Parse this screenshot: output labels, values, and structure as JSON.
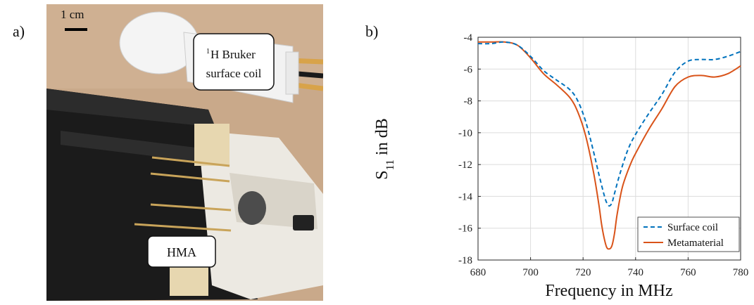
{
  "panel_a": {
    "label": "a)",
    "scale_bar": "1 cm",
    "coil_label_superscript": "1",
    "coil_label_line1": "H Bruker",
    "coil_label_line2": "surface coil",
    "hma_label": "HMA"
  },
  "panel_b": {
    "label": "b)"
  },
  "chart_data": {
    "type": "line",
    "xlabel": "Frequency in MHz",
    "ylabel_main": "S",
    "ylabel_sub": "11",
    "ylabel_suffix": " in dB",
    "xlim": [
      680,
      780
    ],
    "ylim": [
      -18,
      -4
    ],
    "xticks": [
      680,
      700,
      720,
      740,
      760,
      780
    ],
    "yticks": [
      -4,
      -6,
      -8,
      -10,
      -12,
      -14,
      -16,
      -18
    ],
    "grid": true,
    "legend_position": "bottom-right",
    "series": [
      {
        "name": "Surface coil",
        "color": "#0072BD",
        "style": "dashed",
        "x": [
          680,
          685,
          690,
          695,
          700,
          705,
          710,
          715,
          718,
          721,
          724,
          726,
          728,
          729,
          730,
          731,
          732,
          734,
          737,
          740,
          745,
          750,
          755,
          760,
          765,
          770,
          775,
          780
        ],
        "y": [
          -4.4,
          -4.4,
          -4.3,
          -4.5,
          -5.2,
          -6.1,
          -6.7,
          -7.3,
          -8.0,
          -9.3,
          -11.2,
          -12.6,
          -13.9,
          -14.4,
          -14.6,
          -14.4,
          -13.8,
          -12.6,
          -11.1,
          -10.1,
          -8.8,
          -7.6,
          -6.2,
          -5.5,
          -5.4,
          -5.4,
          -5.2,
          -4.9
        ]
      },
      {
        "name": "Metamaterial",
        "color": "#D95319",
        "style": "solid",
        "x": [
          680,
          685,
          690,
          695,
          700,
          705,
          710,
          715,
          718,
          721,
          724,
          726,
          727,
          728,
          729,
          730,
          731,
          732,
          733,
          735,
          738,
          740,
          745,
          750,
          755,
          760,
          765,
          770,
          775,
          780
        ],
        "y": [
          -4.3,
          -4.3,
          -4.3,
          -4.5,
          -5.3,
          -6.3,
          -7.0,
          -7.8,
          -8.7,
          -10.2,
          -12.5,
          -14.5,
          -15.7,
          -16.6,
          -17.2,
          -17.3,
          -17.1,
          -16.3,
          -15.1,
          -13.4,
          -12.0,
          -11.3,
          -9.8,
          -8.5,
          -7.1,
          -6.5,
          -6.4,
          -6.5,
          -6.3,
          -5.8
        ]
      }
    ]
  }
}
